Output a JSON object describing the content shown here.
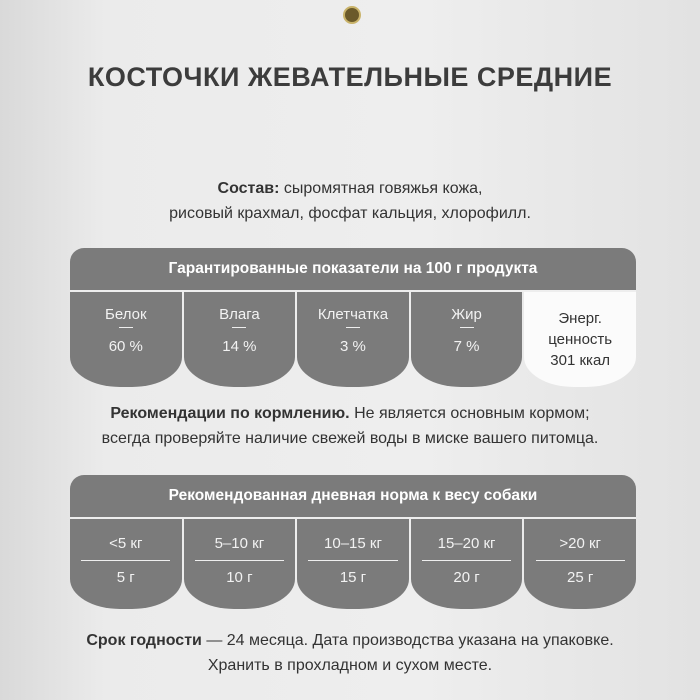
{
  "title": "КОСТОЧКИ ЖЕВАТЕЛЬНЫЕ СРЕДНИЕ",
  "composition": {
    "label": "Состав:",
    "line1": "сыромятная говяжья кожа,",
    "line2": "рисовый крахмал, фосфат кальция, хлорофилл."
  },
  "nutrition": {
    "header": "Гарантированные показатели на 100 г продукта",
    "items": [
      {
        "name": "Белок",
        "value": "60 %"
      },
      {
        "name": "Влага",
        "value": "14 %"
      },
      {
        "name": "Клетчатка",
        "value": "3 %"
      },
      {
        "name": "Жир",
        "value": "7 %"
      }
    ],
    "energy": {
      "line1": "Энерг.",
      "line2": "ценность",
      "value": "301 ккал"
    }
  },
  "feeding": {
    "label": "Рекомендации по кормлению.",
    "line1": "Не является основным кормом;",
    "line2": "всегда проверяйте наличие свежей воды в миске вашего питомца."
  },
  "daily": {
    "header": "Рекомендованная дневная норма к весу собаки",
    "items": [
      {
        "weight": "<5 кг",
        "amount": "5 г"
      },
      {
        "weight": "5–10 кг",
        "amount": "10 г"
      },
      {
        "weight": "10–15 кг",
        "amount": "15 г"
      },
      {
        "weight": "15–20 кг",
        "amount": "20 г"
      },
      {
        "weight": ">20 кг",
        "amount": "25 г"
      }
    ]
  },
  "shelf": {
    "label": "Срок годности",
    "line1": " — 24 месяца. Дата производства указана на упаковке.",
    "line2": "Хранить в прохладном и сухом месте."
  }
}
